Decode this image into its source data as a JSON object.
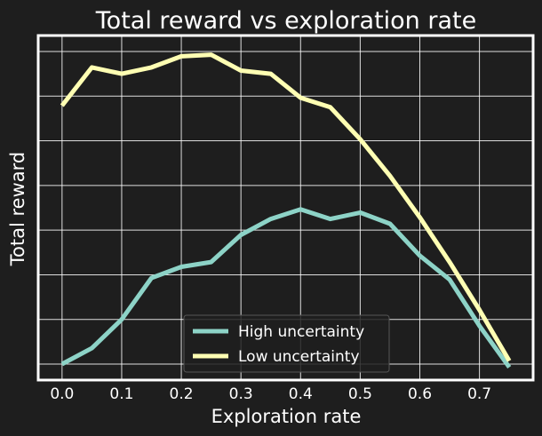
{
  "chart_data": {
    "type": "line",
    "title": "Total reward vs exploration rate",
    "xlabel": "Exploration rate",
    "ylabel": "Total reward",
    "xlim": [
      -0.04,
      0.79
    ],
    "ylim": [
      -0.05,
      1.03
    ],
    "x_ticks": [
      "0.0",
      "0.1",
      "0.2",
      "0.3",
      "0.4",
      "0.5",
      "0.6",
      "0.7"
    ],
    "y_gridlines": [
      0,
      0.14,
      0.28,
      0.42,
      0.56,
      0.7,
      0.84,
      0.98
    ],
    "y_tick_labels_shown": false,
    "grid": true,
    "legend_position": "bottom-center",
    "x": [
      0.0,
      0.05,
      0.1,
      0.15,
      0.2,
      0.25,
      0.3,
      0.35,
      0.4,
      0.45,
      0.5,
      0.55,
      0.6,
      0.65,
      0.7,
      0.75
    ],
    "series": [
      {
        "name": "High uncertainty",
        "color": "#8dd3c7",
        "values": [
          0.0,
          0.05,
          0.14,
          0.27,
          0.305,
          0.32,
          0.405,
          0.455,
          0.485,
          0.455,
          0.475,
          0.44,
          0.34,
          0.265,
          0.12,
          -0.01
        ]
      },
      {
        "name": "Low uncertainty",
        "color": "#ffffb3",
        "values": [
          0.81,
          0.93,
          0.91,
          0.93,
          0.965,
          0.97,
          0.92,
          0.91,
          0.835,
          0.805,
          0.705,
          0.59,
          0.46,
          0.32,
          0.17,
          0.01
        ]
      }
    ]
  },
  "colors": {
    "background": "#1e1e1e",
    "grid": "#ffffff",
    "frame": "#ffffff",
    "text": "#ffffff"
  }
}
